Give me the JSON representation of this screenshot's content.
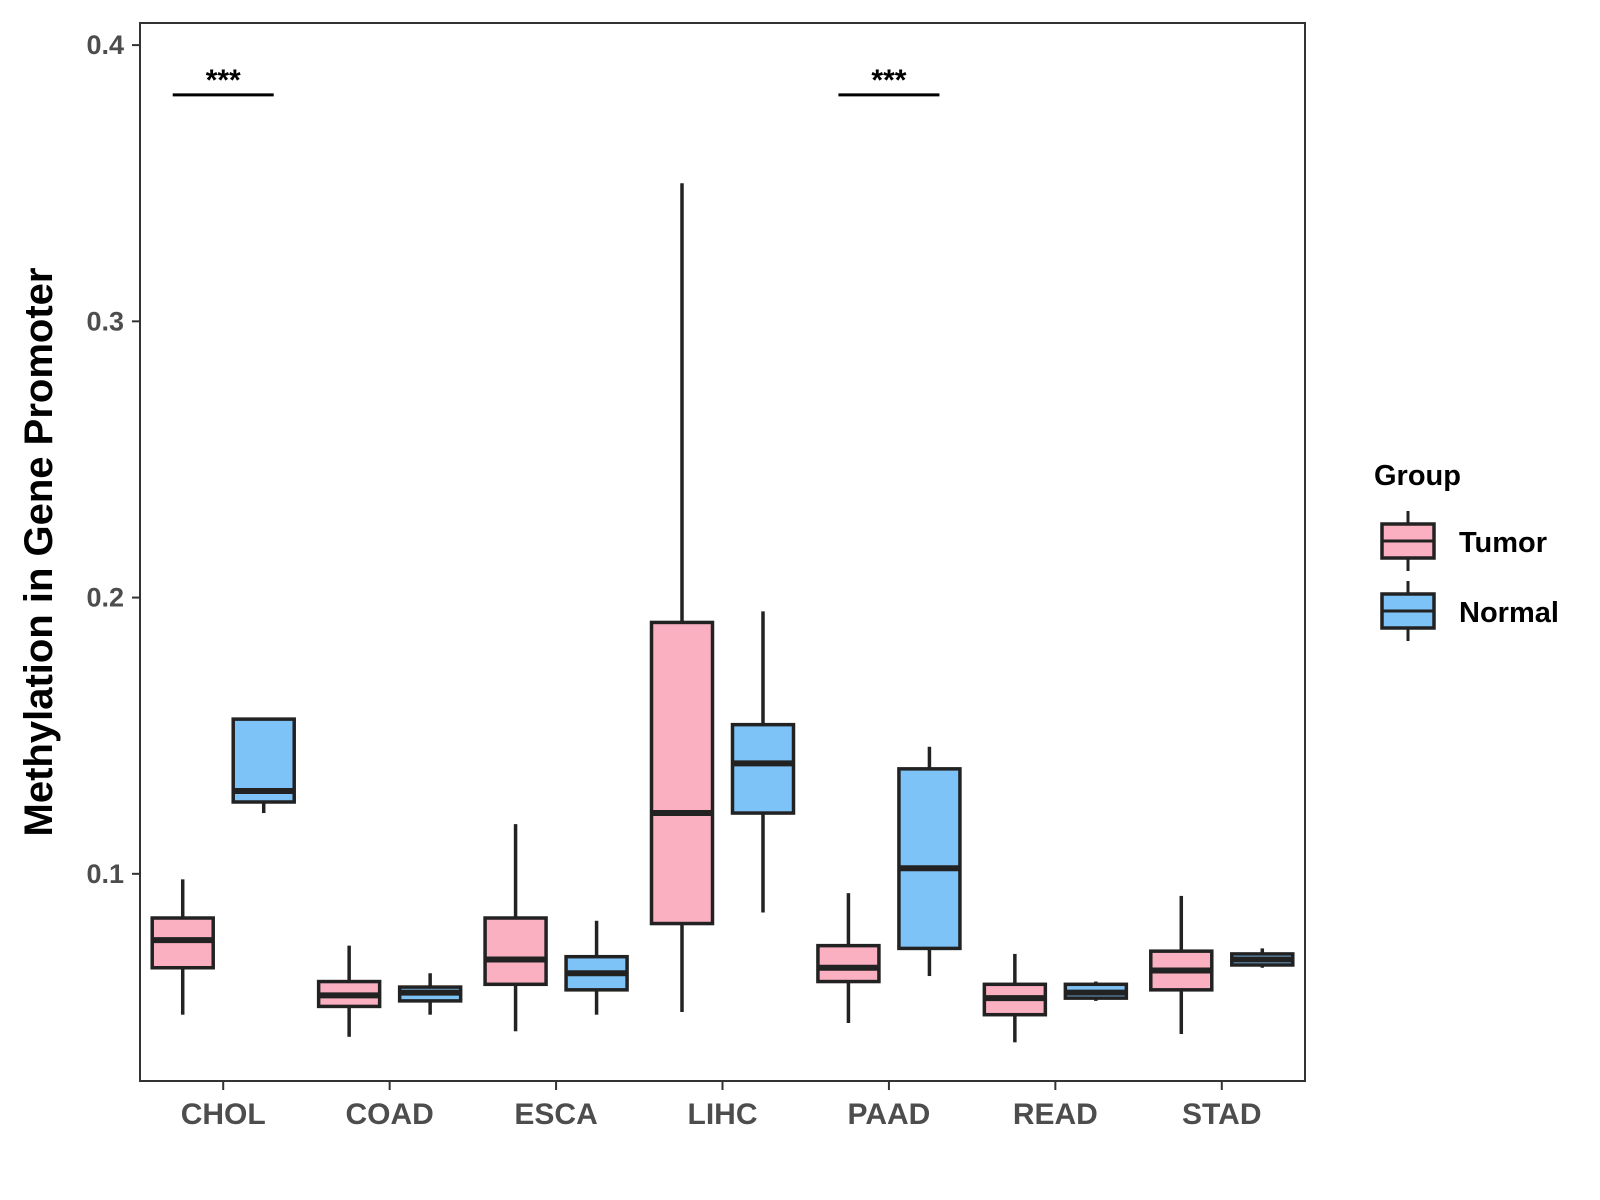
{
  "chart_data": {
    "type": "boxplot",
    "title": "",
    "xlabel": "",
    "ylabel": "Methylation in Gene Promoter",
    "ylim": [
      0.025,
      0.408
    ],
    "yticks": [
      0.1,
      0.2,
      0.3,
      0.4
    ],
    "ytick_labels": [
      "0.1",
      "0.2",
      "0.3",
      "0.4"
    ],
    "categories": [
      "CHOL",
      "COAD",
      "ESCA",
      "LIHC",
      "PAAD",
      "READ",
      "STAD"
    ],
    "grid": false,
    "legend_position": "right",
    "legend_title": "Group",
    "series": [
      {
        "name": "Tumor",
        "color": "#fbb0c2",
        "boxes": [
          {
            "category": "CHOL",
            "min": 0.049,
            "q1": 0.066,
            "median": 0.076,
            "q3": 0.084,
            "max": 0.098
          },
          {
            "category": "COAD",
            "min": 0.041,
            "q1": 0.052,
            "median": 0.056,
            "q3": 0.061,
            "max": 0.074
          },
          {
            "category": "ESCA",
            "min": 0.043,
            "q1": 0.06,
            "median": 0.069,
            "q3": 0.084,
            "max": 0.118
          },
          {
            "category": "LIHC",
            "min": 0.05,
            "q1": 0.082,
            "median": 0.122,
            "q3": 0.191,
            "max": 0.35
          },
          {
            "category": "PAAD",
            "min": 0.046,
            "q1": 0.061,
            "median": 0.066,
            "q3": 0.074,
            "max": 0.093
          },
          {
            "category": "READ",
            "min": 0.039,
            "q1": 0.049,
            "median": 0.055,
            "q3": 0.06,
            "max": 0.071
          },
          {
            "category": "STAD",
            "min": 0.042,
            "q1": 0.058,
            "median": 0.065,
            "q3": 0.072,
            "max": 0.092
          }
        ]
      },
      {
        "name": "Normal",
        "color": "#7ec3f8",
        "boxes": [
          {
            "category": "CHOL",
            "min": 0.122,
            "q1": 0.126,
            "median": 0.13,
            "q3": 0.156,
            "max": 0.156
          },
          {
            "category": "COAD",
            "min": 0.049,
            "q1": 0.054,
            "median": 0.057,
            "q3": 0.059,
            "max": 0.064
          },
          {
            "category": "ESCA",
            "min": 0.049,
            "q1": 0.058,
            "median": 0.064,
            "q3": 0.07,
            "max": 0.083
          },
          {
            "category": "LIHC",
            "min": 0.086,
            "q1": 0.122,
            "median": 0.14,
            "q3": 0.154,
            "max": 0.195
          },
          {
            "category": "PAAD",
            "min": 0.063,
            "q1": 0.073,
            "median": 0.102,
            "q3": 0.138,
            "max": 0.146
          },
          {
            "category": "READ",
            "min": 0.054,
            "q1": 0.055,
            "median": 0.057,
            "q3": 0.06,
            "max": 0.061
          },
          {
            "category": "STAD",
            "min": 0.066,
            "q1": 0.067,
            "median": 0.069,
            "q3": 0.071,
            "max": 0.073
          }
        ]
      }
    ],
    "annotations": [
      {
        "category": "CHOL",
        "text": "***",
        "y": 0.382
      },
      {
        "category": "PAAD",
        "text": "***",
        "y": 0.382
      }
    ]
  }
}
